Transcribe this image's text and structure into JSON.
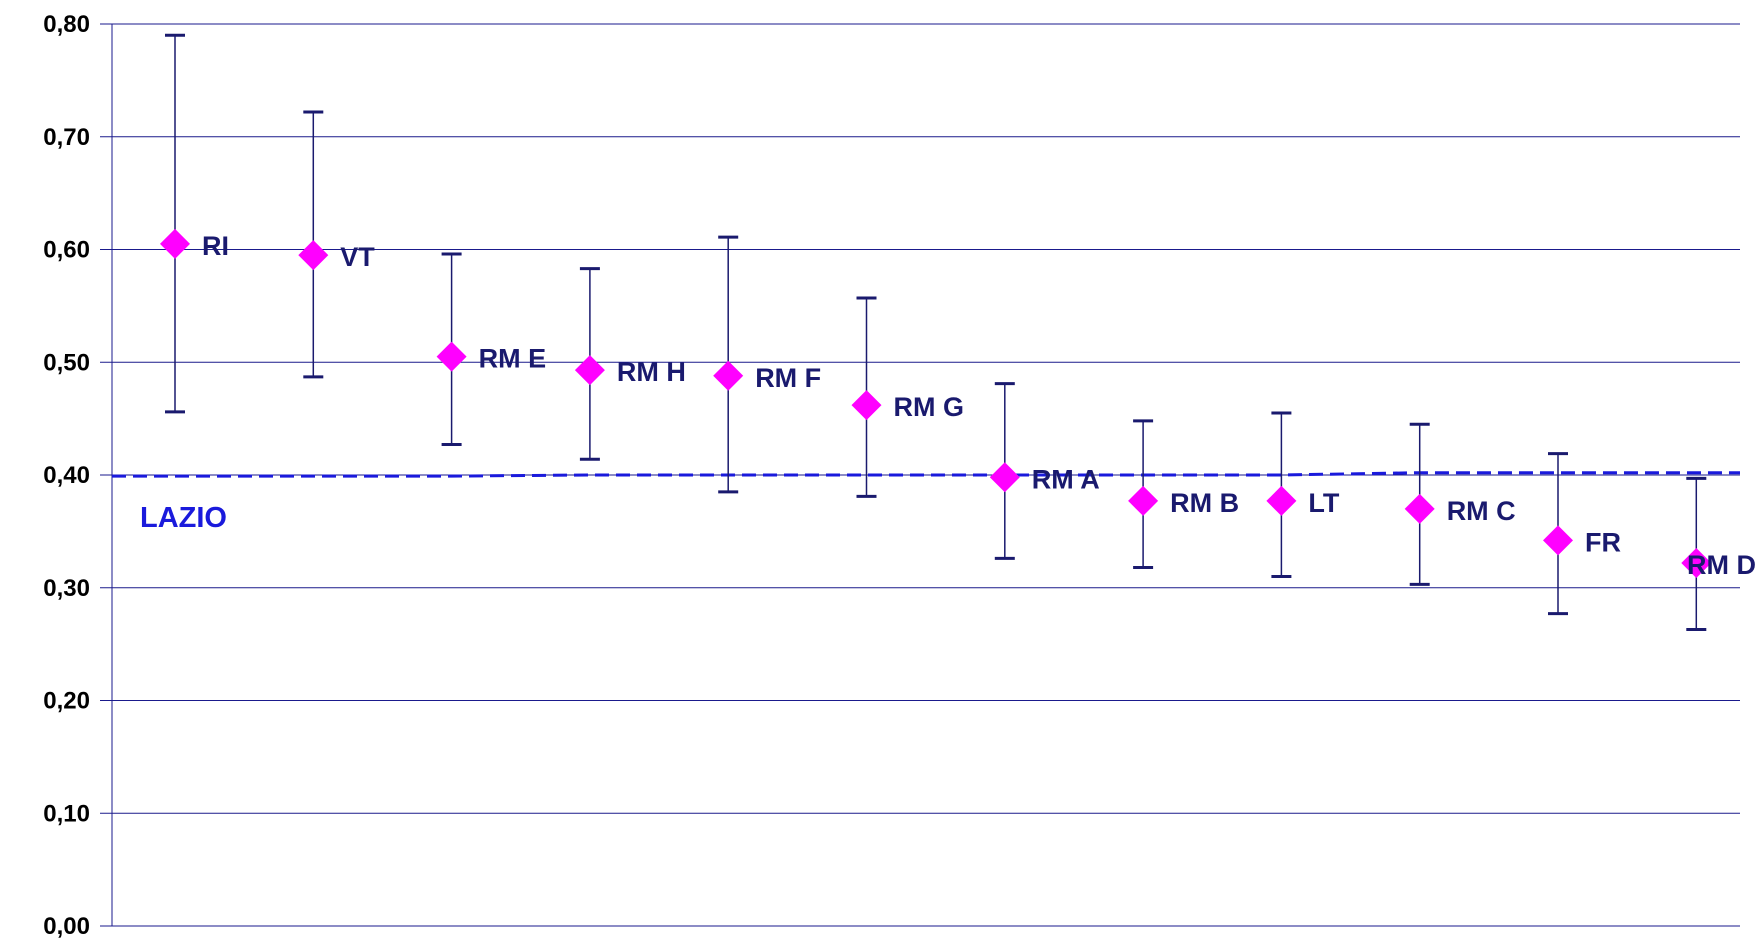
{
  "chart_data": {
    "type": "scatter",
    "title": "",
    "xlabel": "",
    "ylabel": "",
    "ylim": [
      0,
      0.8
    ],
    "y_ticks": [
      "0,00",
      "0,10",
      "0,20",
      "0,30",
      "0,40",
      "0,50",
      "0,60",
      "0,70",
      "0,80"
    ],
    "grid": true,
    "categories": [
      "RI",
      "VT",
      "RM E",
      "RM H",
      "RM F",
      "RM G",
      "RM A",
      "RM B",
      "LT",
      "RM C",
      "FR",
      "RM D"
    ],
    "values": [
      0.605,
      0.595,
      0.505,
      0.493,
      0.488,
      0.462,
      0.398,
      0.377,
      0.377,
      0.37,
      0.342,
      0.322
    ],
    "error_low": [
      0.456,
      0.487,
      0.427,
      0.414,
      0.385,
      0.381,
      0.326,
      0.318,
      0.31,
      0.303,
      0.277,
      0.263
    ],
    "error_high": [
      0.79,
      0.722,
      0.596,
      0.583,
      0.611,
      0.557,
      0.481,
      0.448,
      0.455,
      0.445,
      0.419,
      0.397
    ],
    "reference": {
      "label": "LAZIO",
      "values": [
        0.399,
        0.399,
        0.399,
        0.4,
        0.4,
        0.4,
        0.4,
        0.4,
        0.4,
        0.402,
        0.402,
        0.402
      ]
    },
    "colors": {
      "marker": "#ff00ff",
      "error_bar": "#1a1a6e",
      "grid": "#1a1a8c",
      "reference": "#1a1adc",
      "point_label": "#1a1a6e",
      "reference_label": "#1a1adc"
    }
  }
}
